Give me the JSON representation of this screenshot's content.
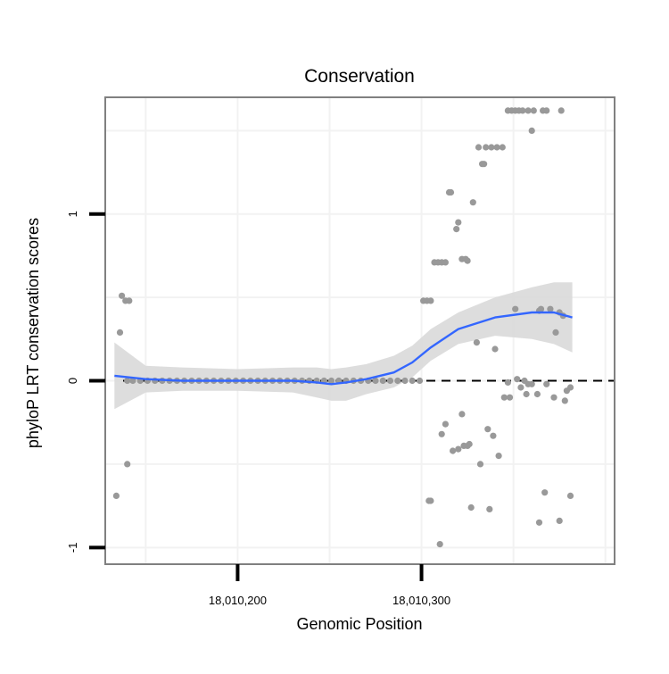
{
  "chart_data": {
    "type": "scatter",
    "title": "Conservation",
    "xlabel": "Genomic Position",
    "ylabel": "phyloP LRT conservation scores",
    "xlim": [
      18010128,
      18010405
    ],
    "ylim": [
      -1.1,
      1.7
    ],
    "x_ticks": [
      {
        "value": 18010200,
        "label": "18,010,200"
      },
      {
        "value": 18010300,
        "label": "18,010,300"
      }
    ],
    "y_ticks": [
      {
        "value": -1,
        "label": "-1"
      },
      {
        "value": 0,
        "label": "0"
      },
      {
        "value": 1,
        "label": "1"
      }
    ],
    "reference_line": {
      "y": 0,
      "style": "dashed"
    },
    "grid": true,
    "colors": {
      "points": "#999999",
      "smooth_line": "#3366ff",
      "confidence_band": "#d9d9d9",
      "panel_border": "#808080",
      "grid": "#f2f2f2"
    },
    "points": [
      {
        "x": 18010134,
        "y": -0.69
      },
      {
        "x": 18010136,
        "y": 0.29
      },
      {
        "x": 18010137,
        "y": 0.51
      },
      {
        "x": 18010139,
        "y": 0.48
      },
      {
        "x": 18010140,
        "y": -0.5
      },
      {
        "x": 18010141,
        "y": 0.48
      },
      {
        "x": 18010140,
        "y": 0
      },
      {
        "x": 18010143,
        "y": 0
      },
      {
        "x": 18010147,
        "y": 0
      },
      {
        "x": 18010151,
        "y": 0
      },
      {
        "x": 18010155,
        "y": 0
      },
      {
        "x": 18010159,
        "y": 0
      },
      {
        "x": 18010163,
        "y": 0
      },
      {
        "x": 18010167,
        "y": 0
      },
      {
        "x": 18010171,
        "y": 0
      },
      {
        "x": 18010175,
        "y": 0
      },
      {
        "x": 18010179,
        "y": 0
      },
      {
        "x": 18010183,
        "y": 0
      },
      {
        "x": 18010187,
        "y": 0
      },
      {
        "x": 18010191,
        "y": 0
      },
      {
        "x": 18010195,
        "y": 0
      },
      {
        "x": 18010199,
        "y": 0
      },
      {
        "x": 18010203,
        "y": 0
      },
      {
        "x": 18010207,
        "y": 0
      },
      {
        "x": 18010211,
        "y": 0
      },
      {
        "x": 18010215,
        "y": 0
      },
      {
        "x": 18010219,
        "y": 0
      },
      {
        "x": 18010223,
        "y": 0
      },
      {
        "x": 18010227,
        "y": 0
      },
      {
        "x": 18010231,
        "y": 0
      },
      {
        "x": 18010235,
        "y": 0
      },
      {
        "x": 18010239,
        "y": 0
      },
      {
        "x": 18010243,
        "y": 0
      },
      {
        "x": 18010247,
        "y": 0
      },
      {
        "x": 18010251,
        "y": 0
      },
      {
        "x": 18010255,
        "y": 0
      },
      {
        "x": 18010259,
        "y": 0
      },
      {
        "x": 18010263,
        "y": 0
      },
      {
        "x": 18010267,
        "y": 0
      },
      {
        "x": 18010271,
        "y": 0
      },
      {
        "x": 18010275,
        "y": 0
      },
      {
        "x": 18010279,
        "y": 0
      },
      {
        "x": 18010283,
        "y": 0
      },
      {
        "x": 18010287,
        "y": 0
      },
      {
        "x": 18010291,
        "y": 0
      },
      {
        "x": 18010295,
        "y": 0
      },
      {
        "x": 18010299,
        "y": 0
      },
      {
        "x": 18010301,
        "y": 0.48
      },
      {
        "x": 18010303,
        "y": 0.48
      },
      {
        "x": 18010305,
        "y": 0.48
      },
      {
        "x": 18010304,
        "y": -0.72
      },
      {
        "x": 18010305,
        "y": -0.72
      },
      {
        "x": 18010307,
        "y": 0.71
      },
      {
        "x": 18010309,
        "y": 0.71
      },
      {
        "x": 18010311,
        "y": 0.71
      },
      {
        "x": 18010313,
        "y": 0.71
      },
      {
        "x": 18010310,
        "y": -0.98
      },
      {
        "x": 18010311,
        "y": -0.32
      },
      {
        "x": 18010313,
        "y": -0.26
      },
      {
        "x": 18010315,
        "y": 1.13
      },
      {
        "x": 18010316,
        "y": 1.13
      },
      {
        "x": 18010317,
        "y": -0.42
      },
      {
        "x": 18010319,
        "y": 0.91
      },
      {
        "x": 18010320,
        "y": 0.95
      },
      {
        "x": 18010320,
        "y": -0.41
      },
      {
        "x": 18010322,
        "y": -0.2
      },
      {
        "x": 18010322,
        "y": 0.73
      },
      {
        "x": 18010323,
        "y": -0.39
      },
      {
        "x": 18010324,
        "y": 0.73
      },
      {
        "x": 18010325,
        "y": 0.72
      },
      {
        "x": 18010325,
        "y": -0.39
      },
      {
        "x": 18010326,
        "y": -0.38
      },
      {
        "x": 18010327,
        "y": -0.76
      },
      {
        "x": 18010328,
        "y": 1.07
      },
      {
        "x": 18010330,
        "y": 0.23
      },
      {
        "x": 18010331,
        "y": 1.4
      },
      {
        "x": 18010332,
        "y": -0.5
      },
      {
        "x": 18010333,
        "y": 1.3
      },
      {
        "x": 18010334,
        "y": 1.3
      },
      {
        "x": 18010335,
        "y": 1.4
      },
      {
        "x": 18010336,
        "y": -0.29
      },
      {
        "x": 18010337,
        "y": -0.77
      },
      {
        "x": 18010338,
        "y": 1.4
      },
      {
        "x": 18010339,
        "y": -0.33
      },
      {
        "x": 18010340,
        "y": 0.19
      },
      {
        "x": 18010341,
        "y": 1.4
      },
      {
        "x": 18010342,
        "y": -0.45
      },
      {
        "x": 18010344,
        "y": 1.4
      },
      {
        "x": 18010345,
        "y": -0.1
      },
      {
        "x": 18010347,
        "y": 1.62
      },
      {
        "x": 18010347,
        "y": -0.01
      },
      {
        "x": 18010348,
        "y": -0.1
      },
      {
        "x": 18010349,
        "y": 1.62
      },
      {
        "x": 18010351,
        "y": 1.62
      },
      {
        "x": 18010351,
        "y": 0.43
      },
      {
        "x": 18010352,
        "y": 0.01
      },
      {
        "x": 18010353,
        "y": 1.62
      },
      {
        "x": 18010354,
        "y": -0.04
      },
      {
        "x": 18010355,
        "y": 1.62
      },
      {
        "x": 18010356,
        "y": 0
      },
      {
        "x": 18010357,
        "y": -0.08
      },
      {
        "x": 18010358,
        "y": 1.62
      },
      {
        "x": 18010358,
        "y": -0.02
      },
      {
        "x": 18010360,
        "y": 1.5
      },
      {
        "x": 18010360,
        "y": -0.02
      },
      {
        "x": 18010361,
        "y": 1.62
      },
      {
        "x": 18010363,
        "y": -0.08
      },
      {
        "x": 18010364,
        "y": 0.42
      },
      {
        "x": 18010364,
        "y": -0.85
      },
      {
        "x": 18010365,
        "y": 0.43
      },
      {
        "x": 18010366,
        "y": 1.62
      },
      {
        "x": 18010367,
        "y": -0.67
      },
      {
        "x": 18010368,
        "y": 1.62
      },
      {
        "x": 18010368,
        "y": -0.02
      },
      {
        "x": 18010370,
        "y": 0.43
      },
      {
        "x": 18010372,
        "y": -0.1
      },
      {
        "x": 18010373,
        "y": 0.29
      },
      {
        "x": 18010375,
        "y": 0.41
      },
      {
        "x": 18010375,
        "y": -0.84
      },
      {
        "x": 18010376,
        "y": 1.62
      },
      {
        "x": 18010377,
        "y": 0.39
      },
      {
        "x": 18010378,
        "y": -0.12
      },
      {
        "x": 18010379,
        "y": -0.06
      },
      {
        "x": 18010381,
        "y": -0.69
      },
      {
        "x": 18010381,
        "y": -0.04
      }
    ],
    "smooth": {
      "x": [
        18010133,
        18010150,
        18010170,
        18010200,
        18010230,
        18010243,
        18010251,
        18010259,
        18010270,
        18010285,
        18010295,
        18010305,
        18010320,
        18010340,
        18010360,
        18010372,
        18010382
      ],
      "y": [
        0.03,
        0.01,
        0.0,
        0.0,
        0.0,
        -0.01,
        -0.02,
        -0.01,
        0.01,
        0.05,
        0.11,
        0.2,
        0.31,
        0.38,
        0.41,
        0.41,
        0.38
      ],
      "lower": [
        -0.17,
        -0.07,
        -0.06,
        -0.06,
        -0.07,
        -0.1,
        -0.12,
        -0.12,
        -0.08,
        -0.04,
        0.02,
        0.12,
        0.22,
        0.27,
        0.25,
        0.22,
        0.17
      ],
      "upper": [
        0.23,
        0.09,
        0.08,
        0.07,
        0.08,
        0.08,
        0.07,
        0.08,
        0.1,
        0.15,
        0.21,
        0.31,
        0.41,
        0.5,
        0.56,
        0.59,
        0.59
      ]
    }
  }
}
